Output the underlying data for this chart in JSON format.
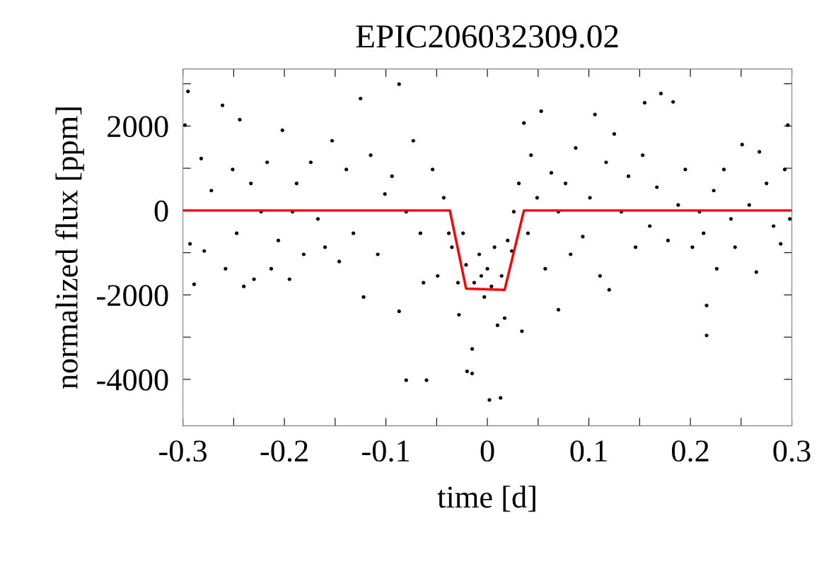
{
  "chart_data": {
    "type": "scatter",
    "title": "EPIC206032309.02",
    "xlabel": "time [d]",
    "ylabel": "normalized flux [ppm]",
    "xlim": [
      -0.3,
      0.3
    ],
    "xticks": [
      -0.3,
      {
        "value": -0.25,
        "label": null
      },
      -0.2,
      {
        "value": -0.15,
        "label": null
      },
      -0.1,
      {
        "value": -0.05,
        "label": null
      },
      0,
      {
        "value": 0.05,
        "label": null
      },
      0.1,
      {
        "value": 0.15,
        "label": null
      },
      0.2,
      {
        "value": 0.25,
        "label": null
      },
      0.3
    ],
    "ylim": [
      -5100,
      3350
    ],
    "yticks": [
      -4000,
      {
        "value": -3000,
        "label": null
      },
      -2000,
      {
        "value": -1000,
        "label": null
      },
      0,
      {
        "value": 1000,
        "label": null
      },
      2000,
      {
        "value": 3000,
        "label": null
      }
    ],
    "grid": false,
    "marker": "circle",
    "series": [
      {
        "color": "#000000",
        "x": [
          -0.298,
          -0.295,
          -0.293,
          -0.289,
          -0.282,
          -0.279,
          -0.272,
          -0.261,
          -0.258,
          -0.251,
          -0.247,
          -0.244,
          -0.24,
          -0.233,
          -0.23,
          -0.223,
          -0.217,
          -0.213,
          -0.206,
          -0.202,
          -0.195,
          -0.192,
          -0.188,
          -0.181,
          -0.174,
          -0.167,
          -0.16,
          -0.153,
          -0.146,
          -0.139,
          -0.132,
          -0.125,
          -0.122,
          -0.115,
          -0.108,
          -0.101,
          -0.094,
          -0.087,
          -0.087,
          -0.08,
          -0.08,
          -0.073,
          -0.066,
          -0.063,
          -0.06,
          -0.054,
          -0.049,
          -0.043,
          -0.038,
          -0.035,
          -0.029,
          -0.028,
          -0.024,
          -0.021,
          -0.02,
          -0.015,
          -0.015,
          -0.013,
          -0.008,
          -0.006,
          -0.003,
          0.0,
          0.002,
          0.004,
          0.007,
          0.01,
          0.013,
          0.014,
          0.017,
          0.02,
          0.024,
          0.026,
          0.031,
          0.034,
          0.036,
          0.04,
          0.043,
          0.049,
          0.053,
          0.057,
          0.063,
          0.07,
          0.07,
          0.077,
          0.082,
          0.087,
          0.094,
          0.101,
          0.106,
          0.111,
          0.117,
          0.12,
          0.125,
          0.132,
          0.139,
          0.146,
          0.153,
          0.155,
          0.16,
          0.167,
          0.171,
          0.178,
          0.183,
          0.188,
          0.195,
          0.202,
          0.209,
          0.213,
          0.216,
          0.216,
          0.223,
          0.226,
          0.233,
          0.24,
          0.244,
          0.251,
          0.258,
          0.265,
          0.268,
          0.275,
          0.282,
          0.289,
          0.293,
          0.296,
          0.298
        ],
        "values": [
          2020,
          2820,
          -790,
          -1750,
          1230,
          -960,
          470,
          2490,
          -1380,
          970,
          -540,
          2150,
          -1800,
          640,
          -1630,
          -30,
          1140,
          -1380,
          -710,
          1900,
          -1630,
          -30,
          640,
          -1040,
          1140,
          -200,
          -870,
          1650,
          -1210,
          970,
          -540,
          2650,
          -2050,
          1310,
          -1040,
          390,
          810,
          2990,
          -2390,
          -30,
          -4020,
          1650,
          -540,
          -1710,
          -4020,
          970,
          -1550,
          300,
          -540,
          -870,
          -1710,
          -2470,
          -540,
          -1290,
          -3810,
          -3280,
          -3860,
          -1710,
          -1040,
          -1550,
          -2050,
          -1380,
          -4490,
          -1800,
          -870,
          -2720,
          -4440,
          -1550,
          -2550,
          -710,
          -960,
          -30,
          640,
          -2860,
          2070,
          -540,
          1310,
          300,
          2350,
          -1380,
          890,
          -30,
          -2350,
          640,
          -1040,
          1480,
          -620,
          300,
          2270,
          -1550,
          1140,
          -1880,
          1810,
          -30,
          810,
          -870,
          1310,
          2550,
          -370,
          550,
          2770,
          -710,
          2570,
          130,
          970,
          -870,
          -30,
          -540,
          -2250,
          -2960,
          470,
          -1380,
          970,
          -200,
          -870,
          1560,
          130,
          -1460,
          1390,
          640,
          -370,
          -790,
          970,
          2020,
          -200
        ]
      },
      {
        "type": "line",
        "color": "#ff0000",
        "marker": "none",
        "line_style": "solid",
        "x": [
          -0.3,
          -0.037,
          -0.021,
          0.017,
          0.036,
          0.3
        ],
        "values": [
          0,
          0,
          -1850,
          -1880,
          0,
          0
        ]
      }
    ]
  }
}
